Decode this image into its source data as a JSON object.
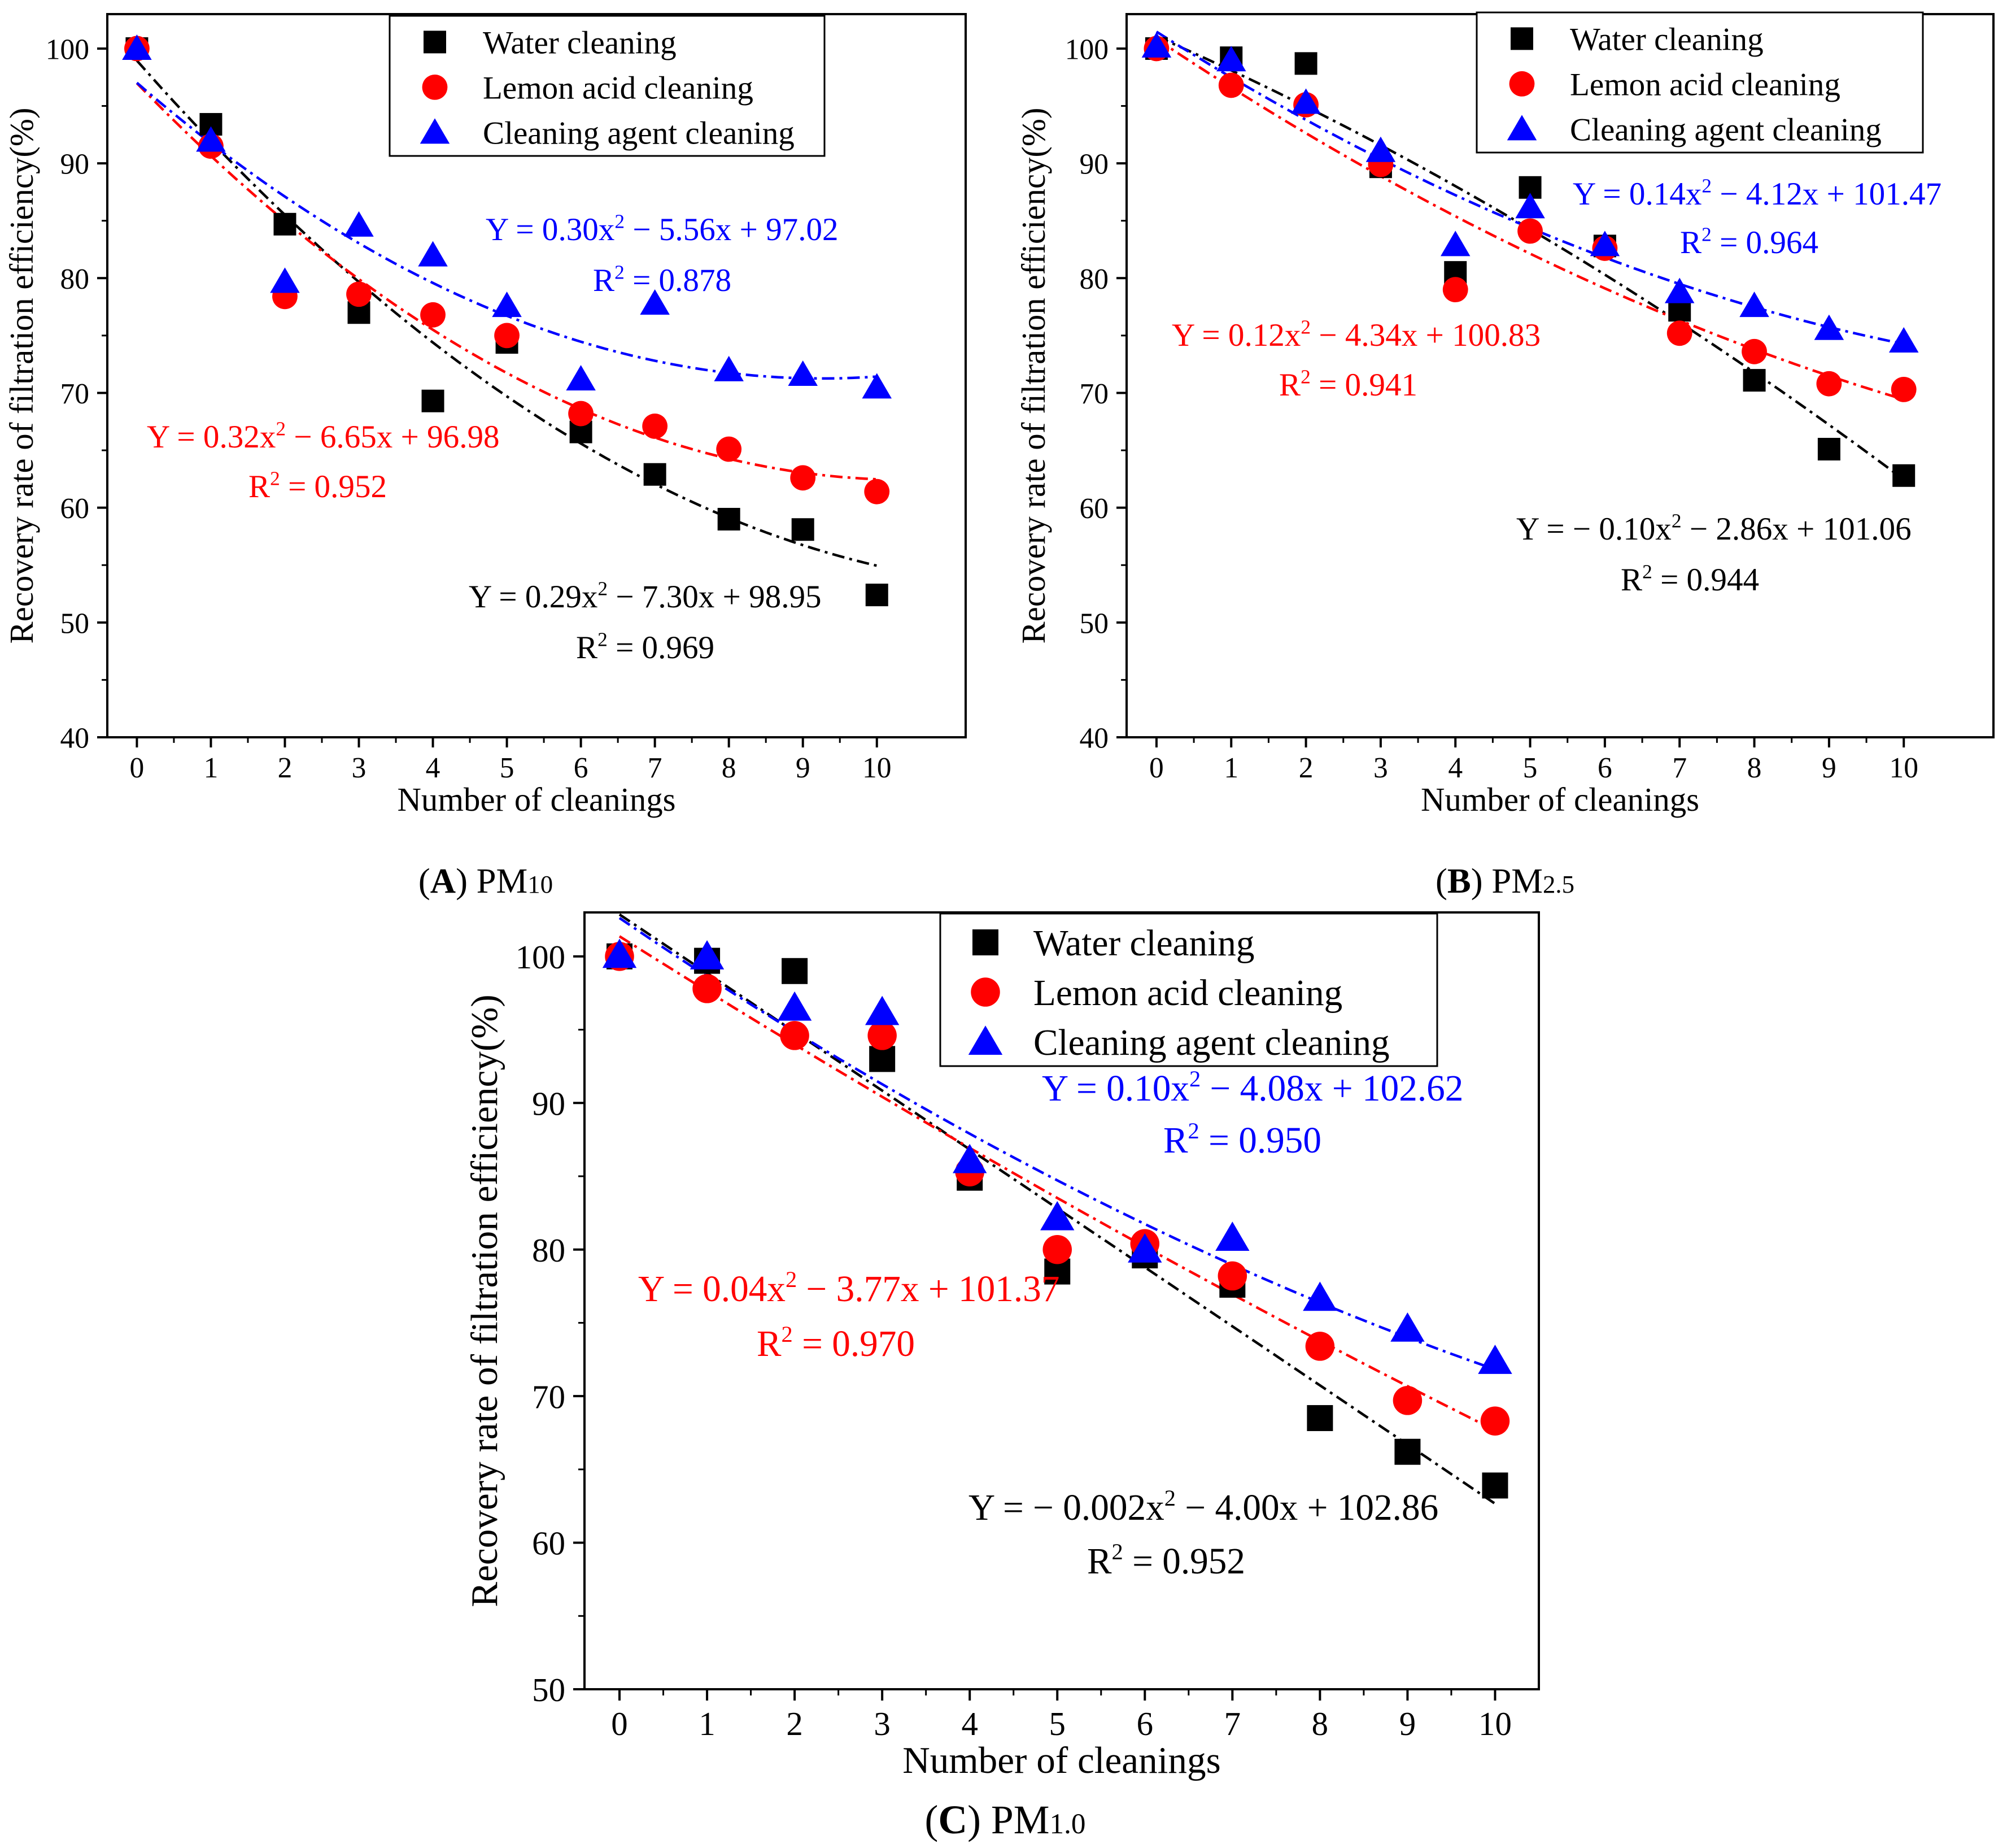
{
  "colors": {
    "water": "#000000",
    "lemon": "#ff0000",
    "agent": "#0000ff",
    "axis": "#000000"
  },
  "legend_entries": [
    "Water cleaning",
    "Lemon acid cleaning",
    "Cleaning agent cleaning"
  ],
  "chart_data": [
    {
      "type": "scatter",
      "panel": "A",
      "caption": {
        "label": "A",
        "text": "PM",
        "sub": "10"
      },
      "xlabel": "Number of cleanings",
      "ylabel": "Recovery rate of filtration efficiency(%)",
      "xlim": [
        -0.4,
        11.2
      ],
      "ylim": [
        40,
        103
      ],
      "xticks": [
        "0",
        "1",
        "2",
        "3",
        "4",
        "5",
        "6",
        "7",
        "8",
        "9",
        "10"
      ],
      "yticks": [
        "40",
        "50",
        "60",
        "70",
        "80",
        "90",
        "100"
      ],
      "legend_position": "top-right",
      "x": [
        0,
        1,
        2,
        3,
        4,
        5,
        6,
        7,
        8,
        9,
        10
      ],
      "series": [
        {
          "name": "Water cleaning",
          "marker": "square",
          "color_key": "water",
          "values": [
            100,
            93.4,
            84.7,
            77.0,
            69.3,
            74.4,
            66.6,
            62.9,
            59.0,
            58.1,
            52.4
          ],
          "fit": {
            "a": 0.29,
            "b": -7.3,
            "c": 98.95,
            "equation": "Y = 0.29x^2 − 7.30x + 98.95",
            "r2": "R^2 = 0.969"
          }
        },
        {
          "name": "Lemon acid cleaning",
          "marker": "circle",
          "color_key": "lemon",
          "values": [
            100,
            91.5,
            78.4,
            78.6,
            76.8,
            75.0,
            68.2,
            67.1,
            65.1,
            62.6,
            61.4
          ],
          "fit": {
            "a": 0.32,
            "b": -6.65,
            "c": 96.98,
            "equation": "Y = 0.32x^2 − 6.65x + 96.98",
            "r2": "R^2 = 0.952"
          }
        },
        {
          "name": "Cleaning agent cleaning",
          "marker": "triangle",
          "color_key": "agent",
          "values": [
            100,
            92.0,
            79.7,
            84.6,
            82.0,
            77.6,
            71.2,
            77.8,
            72.0,
            71.6,
            70.5
          ],
          "fit": {
            "a": 0.3,
            "b": -5.56,
            "c": 97.02,
            "equation": "Y = 0.30x^2 − 5.56x + 97.02",
            "r2": "R^2 = 0.878"
          }
        }
      ]
    },
    {
      "type": "scatter",
      "panel": "B",
      "caption": {
        "label": "B",
        "text": "PM",
        "sub": "2.5"
      },
      "xlabel": "Number of cleanings",
      "ylabel": "Recovery rate of filtration efficiency(%)",
      "xlim": [
        -0.4,
        11.2
      ],
      "ylim": [
        40,
        103
      ],
      "xticks": [
        "0",
        "1",
        "2",
        "3",
        "4",
        "5",
        "6",
        "7",
        "8",
        "9",
        "10"
      ],
      "yticks": [
        "40",
        "50",
        "60",
        "70",
        "80",
        "90",
        "100"
      ],
      "legend_position": "top-right",
      "x": [
        0,
        1,
        2,
        3,
        4,
        5,
        6,
        7,
        8,
        9,
        10
      ],
      "series": [
        {
          "name": "Water cleaning",
          "marker": "square",
          "color_key": "water",
          "values": [
            100,
            99.2,
            98.7,
            89.7,
            80.5,
            87.9,
            82.8,
            77.2,
            71.1,
            65.1,
            62.8
          ],
          "fit": {
            "a": -0.1,
            "b": -2.86,
            "c": 101.06,
            "equation": "Y = − 0.10x^2 − 2.86x + 101.06",
            "r2": "R^2 = 0.944"
          }
        },
        {
          "name": "Lemon acid cleaning",
          "marker": "circle",
          "color_key": "lemon",
          "values": [
            100,
            96.8,
            95.1,
            89.9,
            79.0,
            84.1,
            82.6,
            75.2,
            73.6,
            70.8,
            70.3
          ],
          "fit": {
            "a": 0.12,
            "b": -4.34,
            "c": 100.83,
            "equation": "Y = 0.12x^2 − 4.34x + 100.83",
            "r2": "R^2 = 0.941"
          }
        },
        {
          "name": "Cleaning agent cleaning",
          "marker": "triangle",
          "color_key": "agent",
          "values": [
            100.2,
            99.0,
            95.3,
            91.1,
            82.9,
            86.2,
            82.9,
            78.8,
            77.6,
            75.6,
            74.5
          ],
          "fit": {
            "a": 0.14,
            "b": -4.12,
            "c": 101.47,
            "equation": "Y = 0.14x^2 − 4.12x + 101.47",
            "r2": "R^2 = 0.964"
          }
        }
      ]
    },
    {
      "type": "scatter",
      "panel": "C",
      "caption": {
        "label": "C",
        "text": "PM",
        "sub": "1.0"
      },
      "xlabel": "Number of cleanings",
      "ylabel": "Recovery rate of filtration efficiency(%)",
      "xlim": [
        -0.4,
        10.5
      ],
      "ylim": [
        50,
        103
      ],
      "xticks": [
        "0",
        "1",
        "2",
        "3",
        "4",
        "5",
        "6",
        "7",
        "8",
        "9",
        "10"
      ],
      "yticks": [
        "50",
        "60",
        "70",
        "80",
        "90",
        "100"
      ],
      "legend_position": "top-right",
      "x": [
        0,
        1,
        2,
        3,
        4,
        5,
        6,
        7,
        8,
        9,
        10
      ],
      "series": [
        {
          "name": "Water cleaning",
          "marker": "square",
          "color_key": "water",
          "values": [
            100,
            99.7,
            99.0,
            93.0,
            84.9,
            78.5,
            79.6,
            77.6,
            68.5,
            66.2,
            63.9
          ],
          "fit": {
            "a": -0.002,
            "b": -4.0,
            "c": 102.86,
            "equation": "Y = − 0.002x^2 − 4.00x + 102.86",
            "r2": "R^2 = 0.952"
          }
        },
        {
          "name": "Lemon acid cleaning",
          "marker": "circle",
          "color_key": "lemon",
          "values": [
            100,
            97.8,
            94.6,
            94.6,
            85.3,
            80.0,
            80.4,
            78.2,
            73.4,
            69.7,
            68.3
          ],
          "fit": {
            "a": 0.04,
            "b": -3.77,
            "c": 101.37,
            "equation": "Y = 0.04x^2 − 3.77x + 101.37",
            "r2": "R^2 = 0.970"
          }
        },
        {
          "name": "Cleaning agent cleaning",
          "marker": "triangle",
          "color_key": "agent",
          "values": [
            100.1,
            100.0,
            96.5,
            96.2,
            86.1,
            82.2,
            80.0,
            80.8,
            76.7,
            74.6,
            72.4
          ],
          "fit": {
            "a": 0.1,
            "b": -4.08,
            "c": 102.62,
            "equation": "Y = 0.10x^2 − 4.08x + 102.62",
            "r2": "R^2 = 0.950"
          }
        }
      ]
    }
  ]
}
